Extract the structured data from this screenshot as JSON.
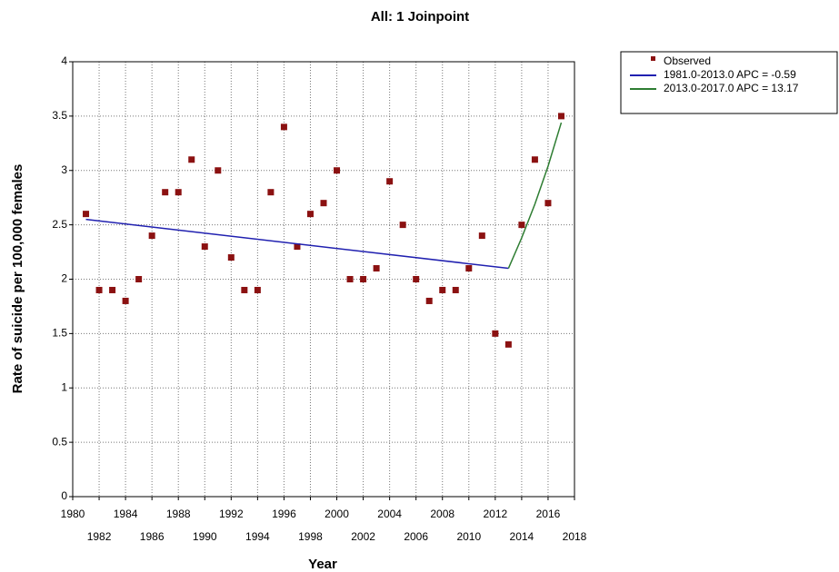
{
  "chart_data": {
    "type": "line",
    "title": "All: 1 Joinpoint",
    "x_label": "Year",
    "y_label": "Rate of suicide per 100,000 females",
    "xlim": [
      1980,
      2018
    ],
    "xticks": [
      1980,
      1982,
      1984,
      1986,
      1988,
      1990,
      1992,
      1994,
      1996,
      1998,
      2000,
      2002,
      2004,
      2006,
      2008,
      2010,
      2012,
      2014,
      2016,
      2018
    ],
    "ylim": [
      0,
      4
    ],
    "yticks": [
      0,
      0.5,
      1,
      1.5,
      2,
      2.5,
      3,
      3.5,
      4
    ],
    "grid": true,
    "legend": "outside-top-right",
    "series": [
      {
        "name": "Observed",
        "color": "#8b1111",
        "style": "markers",
        "x": [
          1981,
          1982,
          1983,
          1984,
          1985,
          1986,
          1987,
          1988,
          1989,
          1990,
          1991,
          1992,
          1993,
          1994,
          1995,
          1996,
          1997,
          1998,
          1999,
          2000,
          2001,
          2002,
          2003,
          2004,
          2005,
          2006,
          2007,
          2008,
          2009,
          2010,
          2011,
          2012,
          2013,
          2014,
          2015,
          2016,
          2017
        ],
        "values": [
          2.6,
          1.9,
          1.9,
          1.8,
          2.0,
          2.4,
          2.8,
          2.8,
          3.1,
          2.3,
          3.0,
          2.2,
          1.9,
          1.9,
          2.8,
          3.4,
          2.3,
          2.6,
          2.7,
          3.0,
          2.0,
          2.0,
          2.1,
          2.9,
          2.5,
          2.0,
          1.8,
          1.9,
          1.9,
          2.1,
          2.4,
          1.5,
          1.4,
          2.5,
          3.1,
          2.7,
          3.5
        ]
      },
      {
        "name": "1981.0-2013.0 APC  = -0.59",
        "color": "#2020b0",
        "style": "line",
        "x": [
          1981,
          2013
        ],
        "values": [
          2.55,
          2.1
        ]
      },
      {
        "name": "2013.0-2017.0 APC  = 13.17",
        "color": "#2e7d32",
        "style": "line",
        "x": [
          2013,
          2014,
          2015,
          2016,
          2017
        ],
        "values": [
          2.1,
          2.38,
          2.69,
          3.04,
          3.44
        ]
      }
    ]
  }
}
